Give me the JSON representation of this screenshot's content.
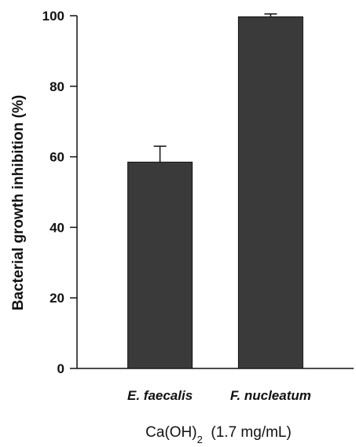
{
  "chart_data": {
    "type": "bar",
    "categories": [
      "E. faecalis",
      "F. nucleatum"
    ],
    "values": [
      58.5,
      99.7
    ],
    "errors": [
      4.5,
      0.8
    ],
    "ylabel": "Bacterial growth inhibition (%)",
    "xlabel": {
      "prefix": "Ca(OH)",
      "subscript": "2",
      "suffix": "  (1.7 mg/mL)"
    },
    "ylim": [
      0,
      100
    ],
    "yticks": [
      0,
      20,
      40,
      60,
      80,
      100
    ],
    "bar_color": "#3a3a3a",
    "grid": false
  }
}
